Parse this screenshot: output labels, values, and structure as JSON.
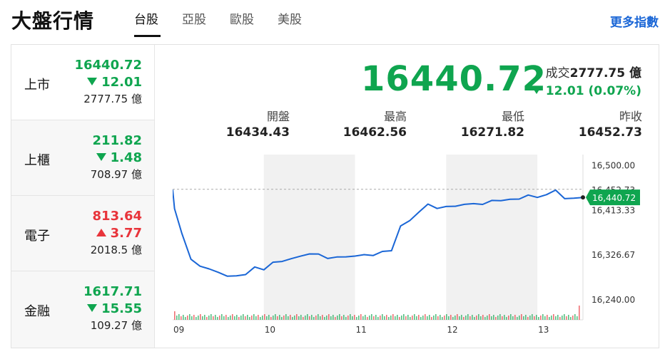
{
  "header": {
    "title": "大盤行情",
    "tabs": [
      {
        "label": "台股",
        "active": true
      },
      {
        "label": "亞股",
        "active": false
      },
      {
        "label": "歐股",
        "active": false
      },
      {
        "label": "美股",
        "active": false
      }
    ],
    "more_link": "更多指數"
  },
  "sidebar": {
    "items": [
      {
        "name": "上市",
        "price": "16440.72",
        "change": "12.01",
        "direction": "down",
        "volume": "2777.75 億"
      },
      {
        "name": "上櫃",
        "price": "211.82",
        "change": "1.48",
        "direction": "down",
        "volume": "708.97 億"
      },
      {
        "name": "電子",
        "price": "813.64",
        "change": "3.77",
        "direction": "up",
        "volume": "2018.5 億"
      },
      {
        "name": "金融",
        "price": "1617.71",
        "change": "15.55",
        "direction": "down",
        "volume": "109.27 億"
      }
    ]
  },
  "main": {
    "price": "16440.72",
    "volume_label": "成交",
    "volume_value": "2777.75 億",
    "change": "12.01 (0.07%)",
    "stats": [
      {
        "label": "開盤",
        "value": "16434.43"
      },
      {
        "label": "最高",
        "value": "16462.56"
      },
      {
        "label": "最低",
        "value": "16271.82"
      },
      {
        "label": "昨收",
        "value": "16452.73"
      }
    ]
  },
  "colors": {
    "down": "#0fa54f",
    "up": "#e8343b",
    "line": "#1a66d6",
    "link": "#1a66d6"
  },
  "chart_data": {
    "type": "line",
    "x_ticks": [
      "09",
      "10",
      "11",
      "12",
      "13"
    ],
    "y_ticks": [
      "16,500.00",
      "16,413.33",
      "16,326.67",
      "16,240.00"
    ],
    "ylim": [
      16200,
      16520
    ],
    "prev_close": 16452.73,
    "last_label": "16,440.72",
    "hidden_label": "16,452.73",
    "series": [
      {
        "x": [
          0,
          0.02,
          0.1,
          0.2,
          0.3,
          0.4,
          0.5,
          0.6,
          0.7,
          0.8,
          0.9,
          1.0,
          1.1,
          1.2,
          1.3,
          1.4,
          1.5,
          1.6,
          1.7,
          1.8,
          1.9,
          2.0,
          2.1,
          2.2,
          2.3,
          2.4,
          2.5,
          2.6,
          2.7,
          2.8,
          2.9,
          3.0,
          3.1,
          3.2,
          3.3,
          3.4,
          3.5,
          3.6,
          3.7,
          3.8,
          3.9,
          4.0,
          4.1,
          4.2,
          4.3,
          4.4,
          4.5
        ],
        "values": [
          16452,
          16414,
          16370,
          16315,
          16305,
          16295,
          16292,
          16288,
          16284,
          16290,
          16300,
          16298,
          16308,
          16313,
          16322,
          16322,
          16330,
          16325,
          16320,
          16318,
          16322,
          16327,
          16325,
          16327,
          16330,
          16335,
          16378,
          16392,
          16412,
          16423,
          16418,
          16417,
          16421,
          16420,
          16425,
          16427,
          16430,
          16433,
          16431,
          16435,
          16438,
          16437,
          16446,
          16450,
          16437,
          16433,
          16437
        ]
      }
    ]
  }
}
